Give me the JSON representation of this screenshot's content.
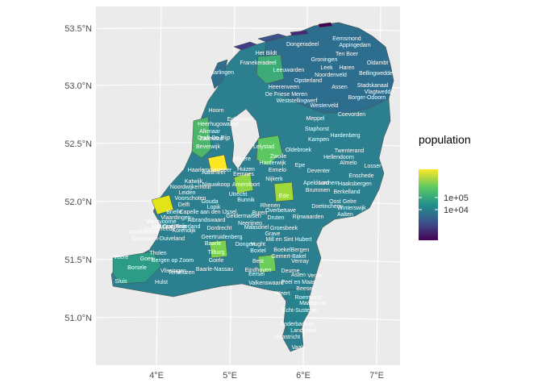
{
  "map": {
    "lat_labels": [
      "53.5°N",
      "53.0°N",
      "52.5°N",
      "52.0°N",
      "51.5°N",
      "51.0°N"
    ],
    "lon_labels": [
      "4°E",
      "5°E",
      "6°E",
      "7°E"
    ],
    "municipalities": [
      "Eemsmond",
      "Appingedam",
      "Dongeradeel",
      "Ten Boer",
      "Het Bildt",
      "Groningen",
      "Oldambt",
      "Leek",
      "Haren",
      "Bellingwedde",
      "Harlingen",
      "Franekeradeel",
      "Leeuwarden",
      "Noordenveld",
      "Opsterland",
      "Assen",
      "Stadskanaal",
      "Heerenveen",
      "Vlagtwedde",
      "De Friese Meren",
      "Borger-Odoorn",
      "Weststellingwerf",
      "Westerveld",
      "Enkhuizen",
      "Coevorden",
      "Hoorn",
      "Meppel",
      "Heerhugowaard",
      "Staphorst",
      "Alkmaar",
      "Graft-De Rijp",
      "Hardenberg",
      "Zaanstad",
      "Kampen",
      "Beverwijk",
      "Lelystad",
      "Oldebroek",
      "Twenterand",
      "Almere",
      "Zwolle",
      "Hellendoorn",
      "Haarlemmermeer",
      "Harderwijk",
      "Epe",
      "Almelo",
      "Aalsmeer",
      "Huizen",
      "Losser",
      "Katwijk",
      "Eemnes",
      "Ermelo",
      "Deventer",
      "Enschede",
      "Noordwijkerhout",
      "Nieuwkoop",
      "Nijkerk",
      "Apeldoorn",
      "Lochem",
      "Haaksbergen",
      "Leiden",
      "Amersfoort",
      "Brummen",
      "Berkelland",
      "Voorschoten",
      "Utrecht",
      "Ede",
      "Oost Gelre",
      "Gouda",
      "Delft",
      "Bunnik",
      "Winterswijk",
      "Lopik",
      "Rhenen",
      "Doetinchem",
      "Brielle",
      "Vlaardingen",
      "Capelle aan den IJssel",
      "Overbetuwe",
      "Aalten",
      "Albrandswaard",
      "Buren",
      "Geldermalsen",
      "Druten",
      "Westvoorne",
      "Hellevoetsluis",
      "Neerijnen",
      "Rijnwaarden",
      "Oud-Beijerland",
      "Dordrecht",
      "Goedereede",
      "Korendijk",
      "Oostflakkee",
      "Maasdriel",
      "Groesbeek",
      "Geertruidenberg",
      "Grave",
      "Schouwen-Duiveland",
      "Dongen",
      "Vught",
      "Mill en Sint Hubert",
      "Tholen",
      "Tilburg",
      "Boxtel",
      "Boekel",
      "Bergen",
      "Veere",
      "Goes",
      "Bergen op Zoom",
      "Baarle",
      "Best",
      "Venray",
      "Borsele",
      "Goirle",
      "Eindhoven",
      "Gemert-Bakel",
      "Vlissingen",
      "Baarle-Nassau",
      "Deurne",
      "Terneuzen",
      "Eersel",
      "Asten",
      "Venlo",
      "Sluis",
      "Hulst",
      "Valkenswaard",
      "Peel en Maas",
      "Weert",
      "Beesel",
      "Roermond",
      "Maasgouw",
      "Echt-Susteren",
      "Onderbanken",
      "Landgraaf",
      "Maastricht",
      "Vaals"
    ]
  },
  "legend": {
    "title": "population",
    "labels": [
      "1e+05",
      "1e+04"
    ],
    "colors": [
      "#440154",
      "#3b528b",
      "#21908c",
      "#5dc863",
      "#fde725"
    ]
  }
}
